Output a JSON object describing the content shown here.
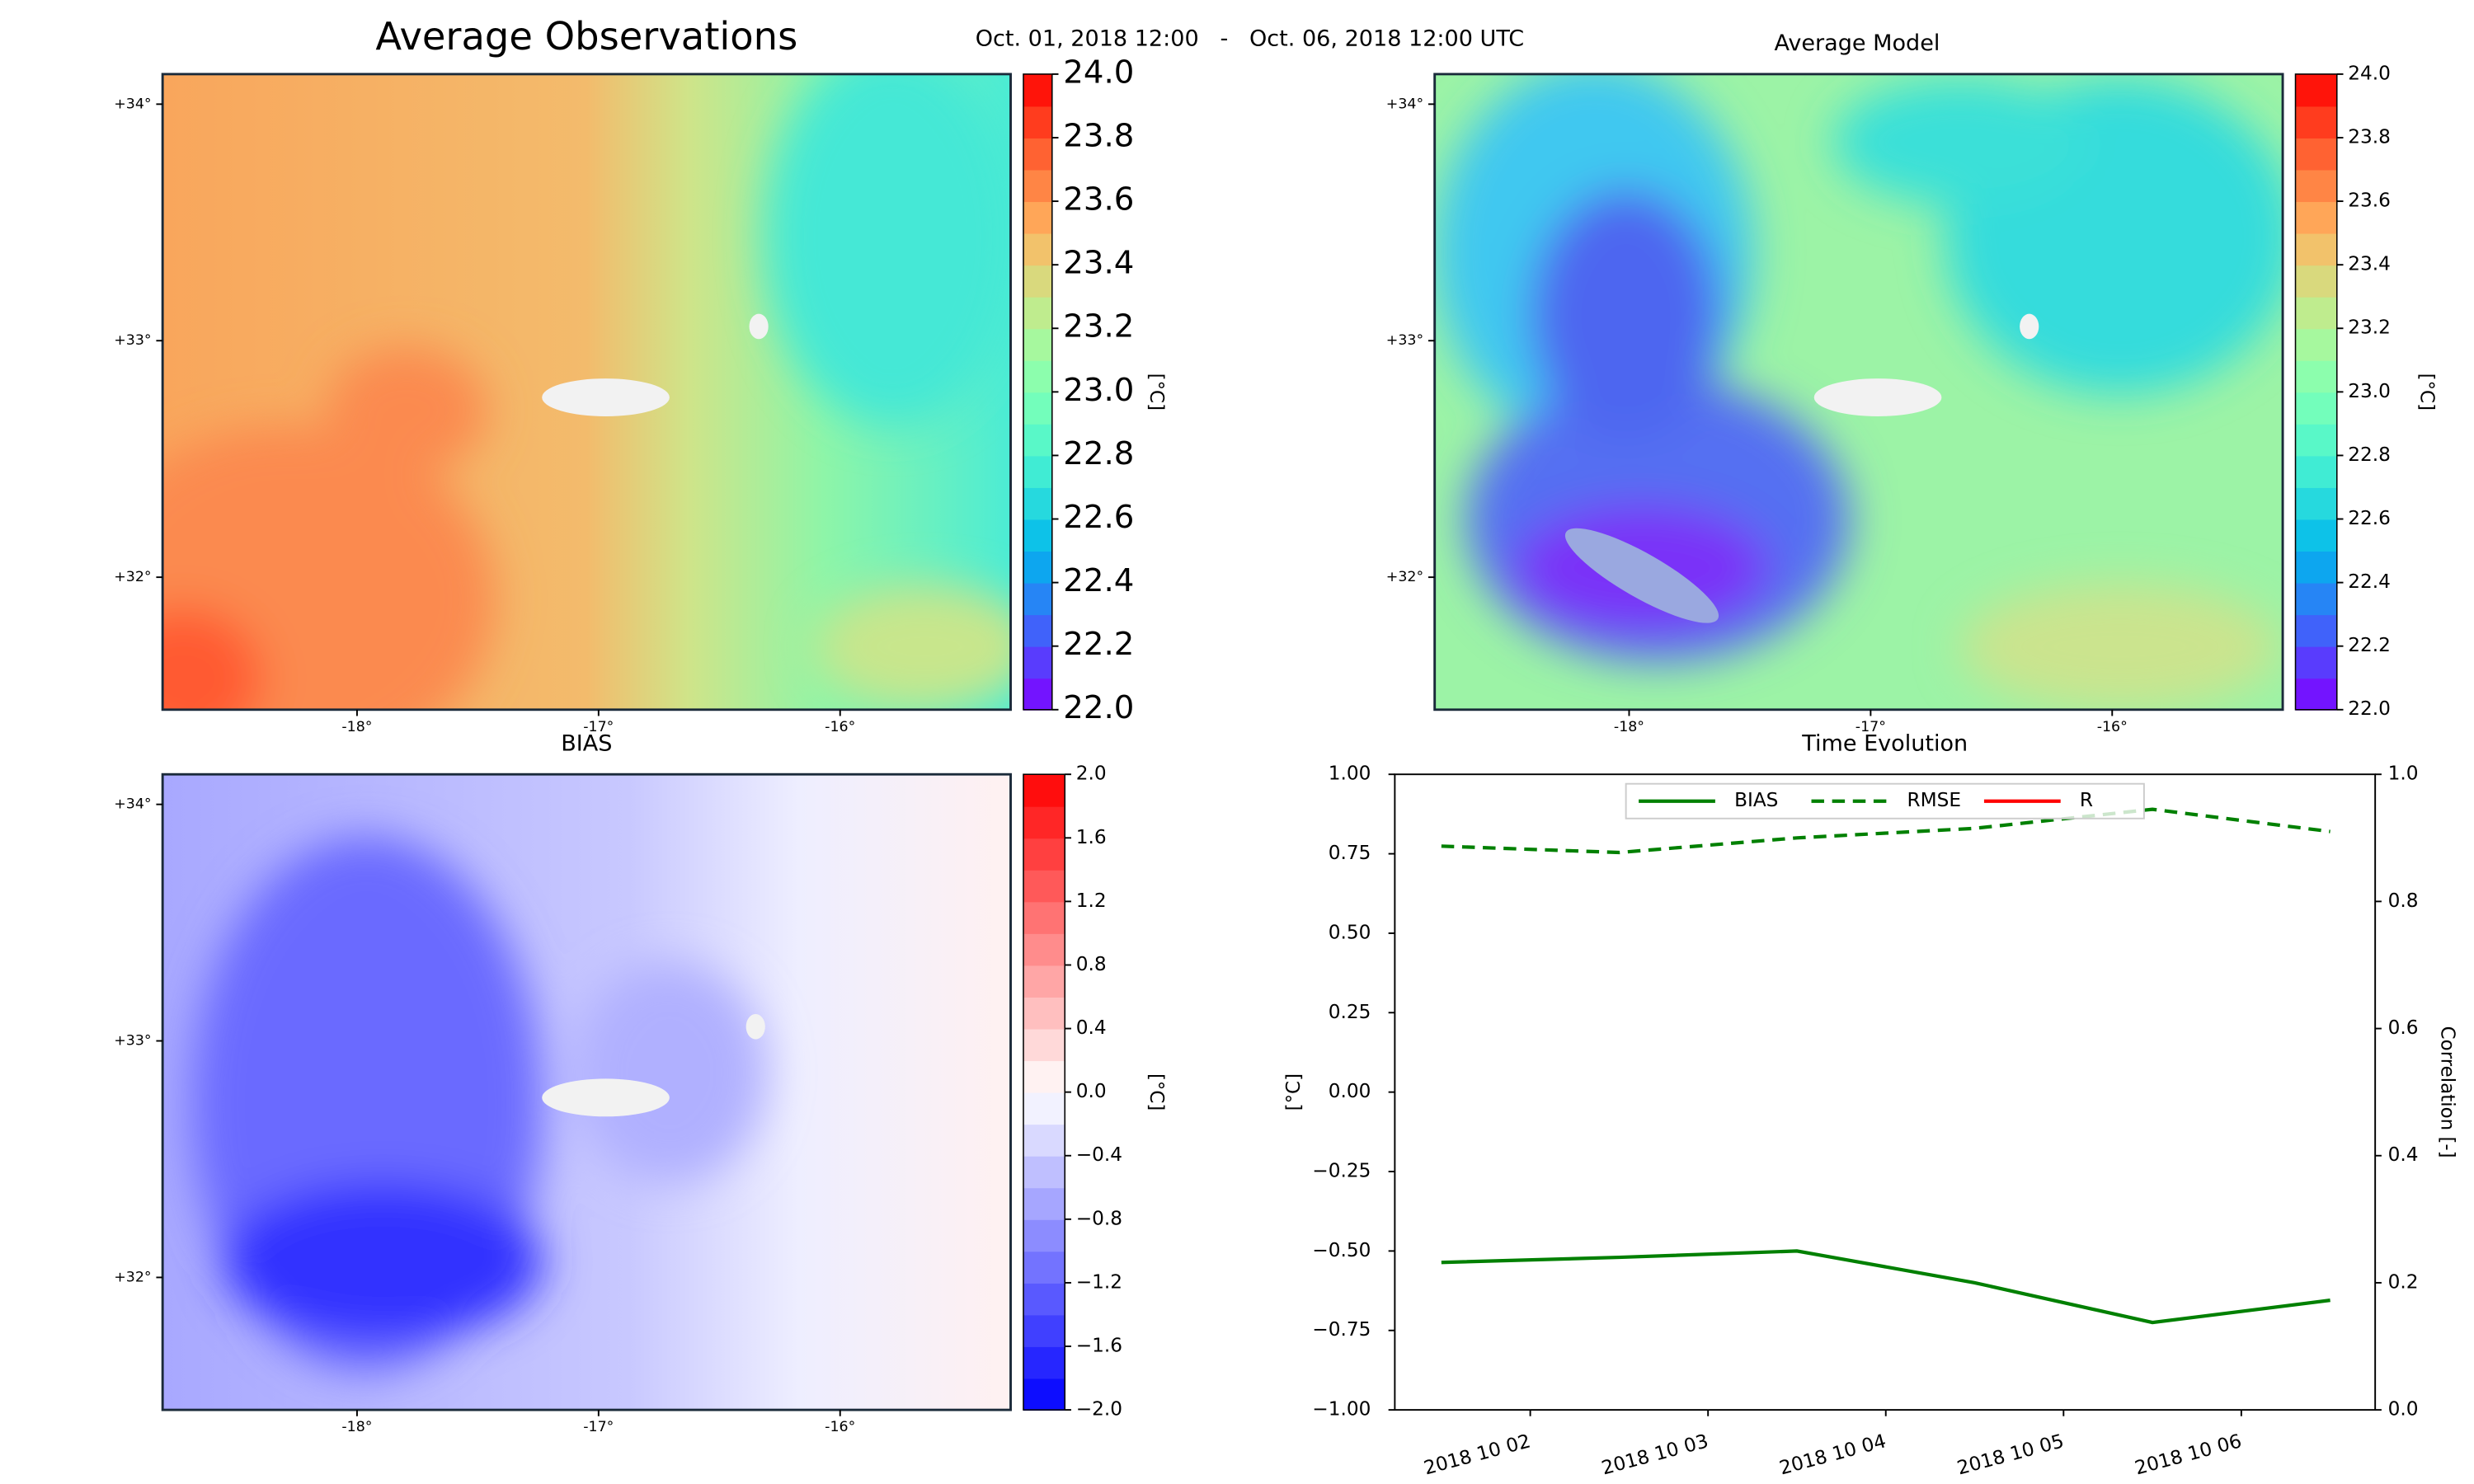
{
  "chart_data": [
    {
      "type": "contour",
      "title": "Average Observations",
      "subtitle": "Oct. 01, 2018 12:00   -   Oct. 06, 2018 12:00 UTC",
      "colormap": "rainbow",
      "clim": [
        22,
        24
      ],
      "cticks": [
        {
          "value": 22,
          "label": "22.0"
        },
        22.2,
        22.4,
        22.6,
        22.8,
        {
          "value": 23,
          "label": "23.0"
        },
        23.2,
        23.4,
        23.6,
        23.8,
        {
          "value": 24,
          "label": "24.0"
        }
      ],
      "clabel": "[°C]",
      "xlim": [
        -18.805,
        -15.294
      ],
      "ylim": [
        31.44,
        34.127
      ],
      "xticks": [
        {
          "value": -18,
          "label": "-18°"
        },
        {
          "value": -17,
          "label": "-17°"
        },
        {
          "value": -16,
          "label": "-16°"
        }
      ],
      "yticks": [
        {
          "value": 32,
          "label": "+32°"
        },
        {
          "value": 33,
          "label": "+33°"
        },
        {
          "value": 34,
          "label": "+34°"
        }
      ]
    },
    {
      "type": "contour",
      "title": "Average Model",
      "colormap": "rainbow",
      "clim": [
        22,
        24
      ],
      "cticks": [
        {
          "value": 22,
          "label": "22.0"
        },
        22.2,
        22.4,
        22.6,
        22.8,
        {
          "value": 23,
          "label": "23.0"
        },
        23.2,
        23.4,
        23.6,
        23.8,
        {
          "value": 24,
          "label": "24.0"
        }
      ],
      "clabel": "[°C]",
      "xlim": [
        -18.805,
        -15.294
      ],
      "ylim": [
        31.44,
        34.127
      ],
      "xticks": [
        {
          "value": -18,
          "label": "-18°"
        },
        {
          "value": -17,
          "label": "-17°"
        },
        {
          "value": -16,
          "label": "-16°"
        }
      ],
      "yticks": [
        {
          "value": 32,
          "label": "+32°"
        },
        {
          "value": 33,
          "label": "+33°"
        },
        {
          "value": 34,
          "label": "+34°"
        }
      ]
    },
    {
      "type": "contour",
      "title": "BIAS",
      "colormap": "bwr",
      "clim": [
        -2,
        2
      ],
      "cticks": [
        {
          "value": -2,
          "label": "−2.0"
        },
        {
          "value": -1.6,
          "label": "−1.6"
        },
        {
          "value": -1.2,
          "label": "−1.2"
        },
        {
          "value": -0.8,
          "label": "−0.8"
        },
        {
          "value": -0.4,
          "label": "−0.4"
        },
        {
          "value": 0,
          "label": "0.0"
        },
        0.4,
        0.8,
        1.2,
        1.6,
        {
          "value": 2,
          "label": "2.0"
        }
      ],
      "clabel": "[°C]",
      "xlim": [
        -18.805,
        -15.294
      ],
      "ylim": [
        31.44,
        34.127
      ],
      "xticks": [
        {
          "value": -18,
          "label": "-18°"
        },
        {
          "value": -17,
          "label": "-17°"
        },
        {
          "value": -16,
          "label": "-16°"
        }
      ],
      "yticks": [
        {
          "value": 32,
          "label": "+32°"
        },
        {
          "value": 33,
          "label": "+33°"
        },
        {
          "value": 34,
          "label": "+34°"
        }
      ]
    },
    {
      "type": "line",
      "title": "Time Evolution",
      "x": [
        1.5,
        2.5,
        3.5,
        4.5,
        5.5,
        6.5
      ],
      "xlim": [
        1.238,
        6.753
      ],
      "xticks": [
        {
          "value": 2,
          "label": "2018 10 02"
        },
        {
          "value": 3,
          "label": "2018 10 03"
        },
        {
          "value": 4,
          "label": "2018 10 04"
        },
        {
          "value": 5,
          "label": "2018 10 05"
        },
        {
          "value": 6,
          "label": "2018 10 06"
        }
      ],
      "ylim": [
        -1,
        1
      ],
      "yticks": [
        {
          "value": -1,
          "label": "−1.00"
        },
        {
          "value": -0.75,
          "label": "−0.75"
        },
        {
          "value": -0.5,
          "label": "−0.50"
        },
        {
          "value": -0.25,
          "label": "−0.25"
        },
        {
          "value": 0,
          "label": "0.00"
        },
        0.25,
        {
          "value": 0.5,
          "label": "0.50"
        },
        0.75,
        {
          "value": 1,
          "label": "1.00"
        }
      ],
      "y2lim": [
        0,
        1
      ],
      "y2ticks": [
        {
          "value": 0,
          "label": "0.0"
        },
        0.2,
        0.4,
        0.6,
        0.8,
        {
          "value": 1,
          "label": "1.0"
        }
      ],
      "ylabel": "[°C]",
      "y2label": "Correlation [-]",
      "ycolor": "#008000",
      "y2color": "#ff0000",
      "legend": "upper center",
      "series": [
        {
          "name": "BIAS",
          "color": "#008000",
          "linestyle": "solid",
          "values": [
            -0.536,
            -0.52,
            -0.5,
            -0.6,
            -0.725,
            -0.655
          ]
        },
        {
          "name": "RMSE",
          "color": "#008000",
          "linestyle": "dashed",
          "values": [
            0.774,
            0.754,
            0.8,
            0.83,
            0.89,
            0.82
          ]
        },
        {
          "name": "R",
          "color": "#ff0000",
          "linestyle": "solid",
          "axis": "y2",
          "values": [
            null,
            null,
            null,
            null,
            null,
            null
          ]
        }
      ]
    }
  ]
}
